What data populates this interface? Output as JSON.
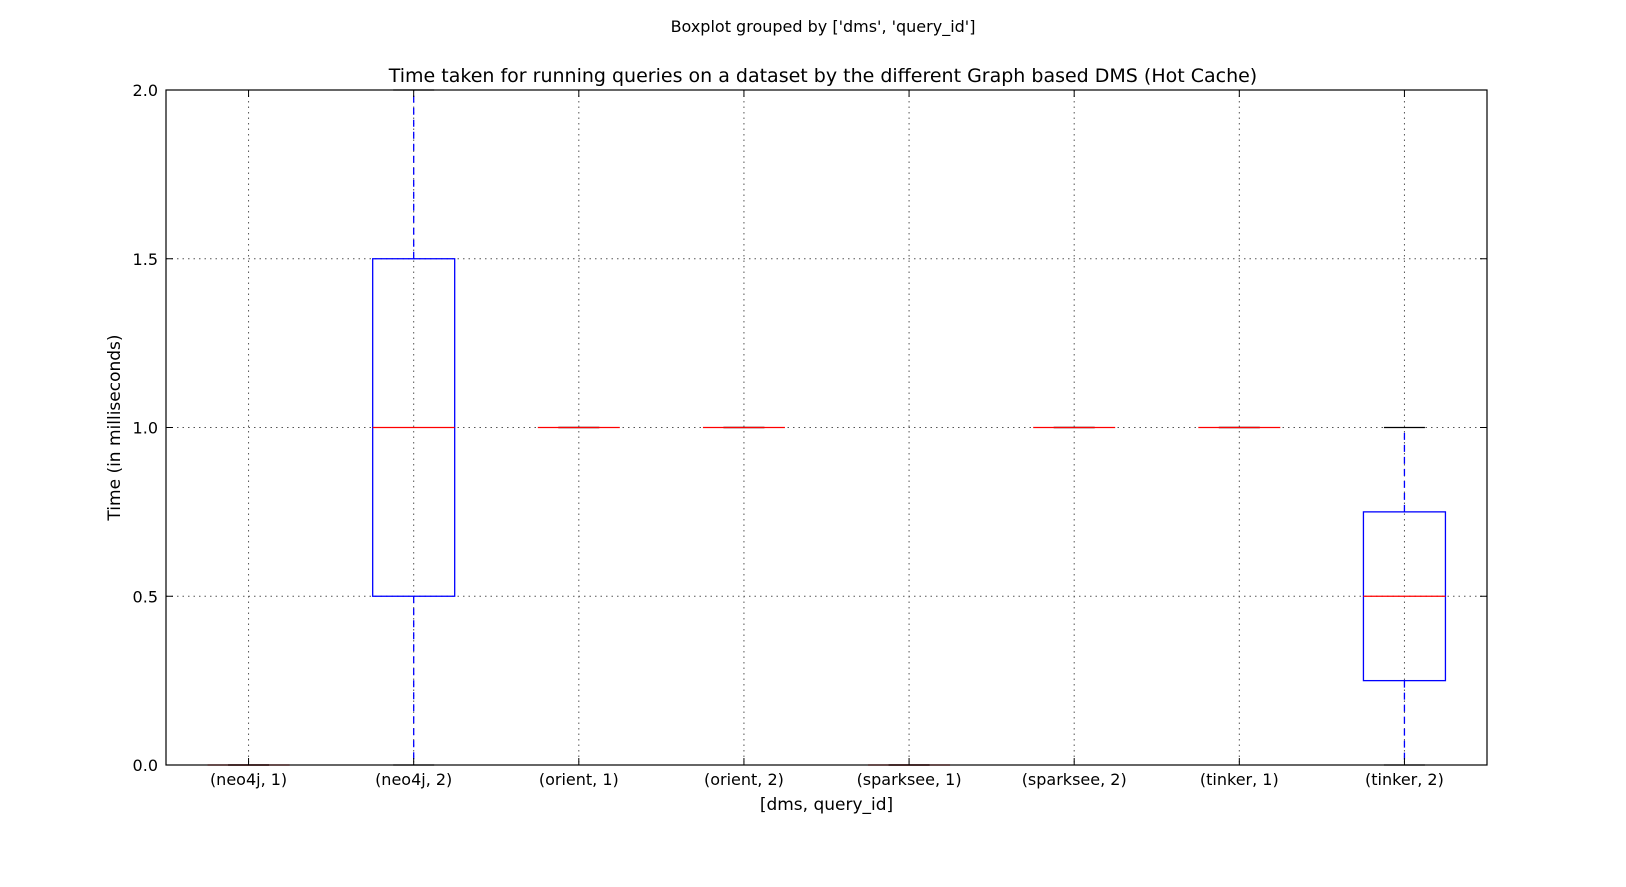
{
  "suptitle": "Boxplot grouped by ['dms', 'query_id']",
  "colors": {
    "box": "#0000ff",
    "median": "#ff0000",
    "whisker": "#0000ff",
    "cap": "#000000",
    "grid": "#555555",
    "axes": "#000000"
  },
  "chart_data": {
    "type": "boxplot",
    "title": "Time taken for running queries on a dataset by the different Graph based DMS (Hot Cache)",
    "xlabel": "[dms, query_id]",
    "ylabel": "Time (in milliseconds)",
    "ylim": [
      0,
      2
    ],
    "yticks": [
      0.0,
      0.5,
      1.0,
      1.5,
      2.0
    ],
    "ytick_labels": [
      "0.0",
      "0.5",
      "1.0",
      "1.5",
      "2.0"
    ],
    "grid": true,
    "categories": [
      "(neo4j, 1)",
      "(neo4j, 2)",
      "(orient, 1)",
      "(orient, 2)",
      "(sparksee, 1)",
      "(sparksee, 2)",
      "(tinker, 1)",
      "(tinker, 2)"
    ],
    "boxes": [
      {
        "label": "(neo4j, 1)",
        "whislo": 0,
        "q1": 0,
        "med": 0,
        "q3": 0,
        "whishi": 0
      },
      {
        "label": "(neo4j, 2)",
        "whislo": 0,
        "q1": 0.5,
        "med": 1.0,
        "q3": 1.5,
        "whishi": 2.0
      },
      {
        "label": "(orient, 1)",
        "whislo": 1.0,
        "q1": 1.0,
        "med": 1.0,
        "q3": 1.0,
        "whishi": 1.0
      },
      {
        "label": "(orient, 2)",
        "whislo": 1.0,
        "q1": 1.0,
        "med": 1.0,
        "q3": 1.0,
        "whishi": 1.0
      },
      {
        "label": "(sparksee, 1)",
        "whislo": 0,
        "q1": 0,
        "med": 0,
        "q3": 0,
        "whishi": 0
      },
      {
        "label": "(sparksee, 2)",
        "whislo": 1.0,
        "q1": 1.0,
        "med": 1.0,
        "q3": 1.0,
        "whishi": 1.0
      },
      {
        "label": "(tinker, 1)",
        "whislo": 1.0,
        "q1": 1.0,
        "med": 1.0,
        "q3": 1.0,
        "whishi": 1.0
      },
      {
        "label": "(tinker, 2)",
        "whislo": 0,
        "q1": 0.25,
        "med": 0.5,
        "q3": 0.75,
        "whishi": 1.0
      }
    ]
  }
}
